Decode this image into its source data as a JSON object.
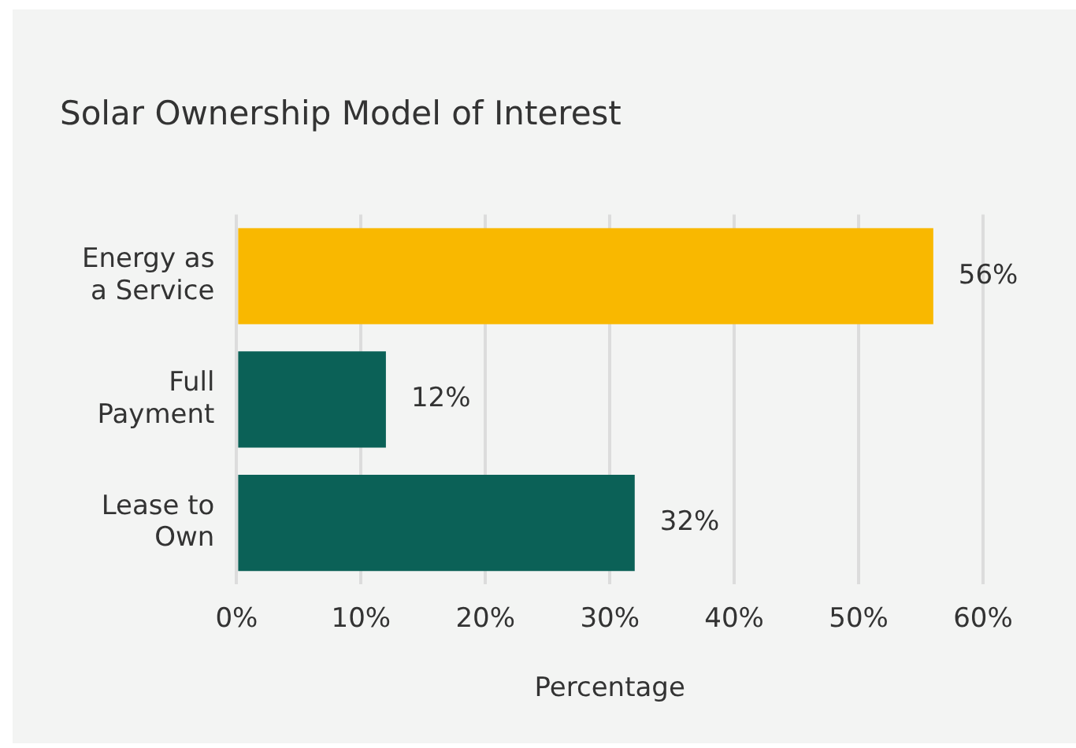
{
  "chart_data": {
    "type": "bar",
    "orientation": "horizontal",
    "title": "Solar Ownership Model of Interest",
    "xlabel": "Percentage",
    "categories": [
      "Energy as a Service",
      "Full Payment",
      "Lease to Own"
    ],
    "values": [
      56,
      12,
      32
    ],
    "colors": [
      "#f9b800",
      "#0b6157",
      "#0b6157"
    ],
    "value_labels": [
      "56%",
      "12%",
      "32%"
    ],
    "xlim": [
      0,
      60
    ],
    "xticks": [
      {
        "value": 0,
        "label": "0%"
      },
      {
        "value": 10,
        "label": "10%"
      },
      {
        "value": 20,
        "label": "20%"
      },
      {
        "value": 30,
        "label": "30%"
      },
      {
        "value": 40,
        "label": "40%"
      },
      {
        "value": 50,
        "label": "50%"
      },
      {
        "value": 60,
        "label": "60%"
      }
    ],
    "grid": "x",
    "legend": false
  }
}
